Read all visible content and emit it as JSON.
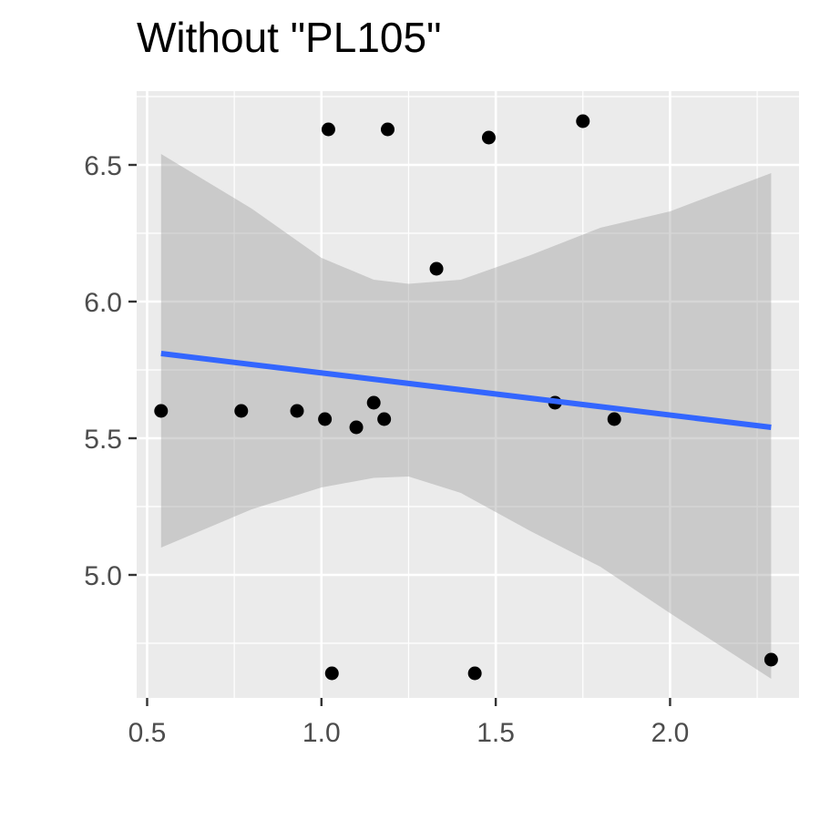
{
  "chart_data": {
    "type": "scatter",
    "title": "Without \"PL105\"",
    "xlabel": "",
    "ylabel": "",
    "xlim": [
      0.47,
      2.37
    ],
    "ylim": [
      4.55,
      6.77
    ],
    "x_ticks": [
      0.5,
      1.0,
      1.5,
      2.0
    ],
    "x_tick_labels": [
      "0.5",
      "1.0",
      "1.5",
      "2.0"
    ],
    "y_ticks": [
      5.0,
      5.5,
      6.0,
      6.5
    ],
    "y_tick_labels": [
      "5.0",
      "5.5",
      "6.0",
      "6.5"
    ],
    "grid": true,
    "points": [
      {
        "x": 0.54,
        "y": 5.6
      },
      {
        "x": 0.77,
        "y": 5.6
      },
      {
        "x": 0.93,
        "y": 5.6
      },
      {
        "x": 1.01,
        "y": 5.57
      },
      {
        "x": 1.02,
        "y": 6.63
      },
      {
        "x": 1.03,
        "y": 4.64
      },
      {
        "x": 1.1,
        "y": 5.54
      },
      {
        "x": 1.15,
        "y": 5.63
      },
      {
        "x": 1.18,
        "y": 5.57
      },
      {
        "x": 1.19,
        "y": 6.63
      },
      {
        "x": 1.33,
        "y": 6.12
      },
      {
        "x": 1.44,
        "y": 4.64
      },
      {
        "x": 1.48,
        "y": 6.6
      },
      {
        "x": 1.67,
        "y": 5.63
      },
      {
        "x": 1.75,
        "y": 6.66
      },
      {
        "x": 1.84,
        "y": 5.57
      },
      {
        "x": 2.29,
        "y": 4.69
      }
    ],
    "fit_line": [
      {
        "x": 0.54,
        "y": 5.81
      },
      {
        "x": 2.29,
        "y": 5.54
      }
    ],
    "confidence_band": [
      {
        "x": 0.54,
        "upper": 6.54,
        "lower": 5.1
      },
      {
        "x": 0.8,
        "upper": 6.34,
        "lower": 5.24
      },
      {
        "x": 1.0,
        "upper": 6.16,
        "lower": 5.32
      },
      {
        "x": 1.15,
        "upper": 6.08,
        "lower": 5.355
      },
      {
        "x": 1.25,
        "upper": 6.065,
        "lower": 5.36
      },
      {
        "x": 1.4,
        "upper": 6.08,
        "lower": 5.3
      },
      {
        "x": 1.6,
        "upper": 6.17,
        "lower": 5.16
      },
      {
        "x": 1.8,
        "upper": 6.27,
        "lower": 5.03
      },
      {
        "x": 2.0,
        "upper": 6.33,
        "lower": 4.86
      },
      {
        "x": 2.29,
        "upper": 6.47,
        "lower": 4.62
      }
    ],
    "colors": {
      "panel": "#ebebeb",
      "grid": "#ffffff",
      "point": "#000000",
      "line": "#3366ff",
      "band": "#999999"
    }
  }
}
